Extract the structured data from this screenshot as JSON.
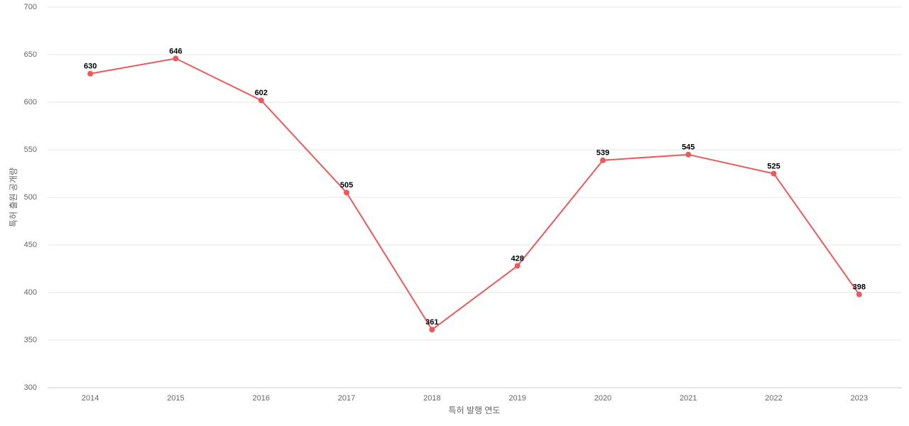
{
  "chart_data": {
    "type": "line",
    "x_label": "특허 발행 연도",
    "y_label": "특허 출원 공개량",
    "categories": [
      "2014",
      "2015",
      "2016",
      "2017",
      "2018",
      "2019",
      "2020",
      "2021",
      "2022",
      "2023"
    ],
    "series": [
      {
        "color": "#eb5a5a",
        "values": [
          630,
          646,
          602,
          505,
          361,
          428,
          539,
          545,
          525,
          398
        ]
      }
    ],
    "ylim": [
      300,
      700
    ],
    "yticks": [
      300,
      350,
      400,
      450,
      500,
      550,
      600,
      650,
      700
    ],
    "grid": true
  }
}
